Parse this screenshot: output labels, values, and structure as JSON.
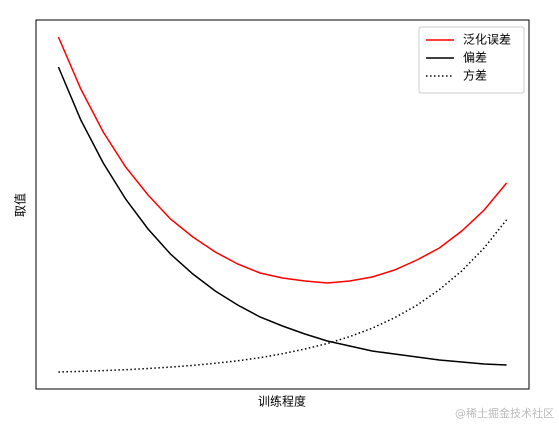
{
  "chart_data": {
    "type": "line",
    "xlabel": "训练程度",
    "ylabel": "取值",
    "x": [
      0,
      0.5,
      1,
      1.5,
      2,
      2.5,
      3,
      3.5,
      4,
      4.5,
      5,
      5.5,
      6,
      6.5,
      7,
      7.5,
      8,
      8.5,
      9,
      9.5,
      10
    ],
    "series": [
      {
        "name": "泛化误差",
        "color": "#ff0000",
        "linestyle": "solid",
        "values": [
          35.2,
          30.0,
          25.7,
          22.2,
          19.4,
          17.0,
          15.2,
          13.7,
          12.5,
          11.6,
          11.1,
          10.8,
          10.6,
          10.8,
          11.2,
          11.9,
          12.9,
          14.1,
          15.8,
          17.9,
          20.6
        ]
      },
      {
        "name": "偏差",
        "color": "#000000",
        "linestyle": "solid",
        "values": [
          32.2,
          26.9,
          22.6,
          19.0,
          16.0,
          13.5,
          11.5,
          9.8,
          8.4,
          7.2,
          6.3,
          5.5,
          4.8,
          4.3,
          3.8,
          3.5,
          3.2,
          2.9,
          2.7,
          2.5,
          2.4
        ]
      },
      {
        "name": "方差",
        "color": "#000000",
        "linestyle": "dotted",
        "values": [
          1.7,
          1.76,
          1.84,
          1.93,
          2.05,
          2.19,
          2.36,
          2.57,
          2.82,
          3.13,
          3.53,
          4.0,
          4.55,
          5.24,
          6.08,
          7.12,
          8.38,
          9.94,
          11.81,
          14.11,
          16.92
        ]
      }
    ],
    "xlim": [
      -0.5,
      10.5
    ],
    "ylim": [
      0,
      36.9
    ],
    "legend": "upper right",
    "watermark": "@稀土掘金技术社区"
  }
}
